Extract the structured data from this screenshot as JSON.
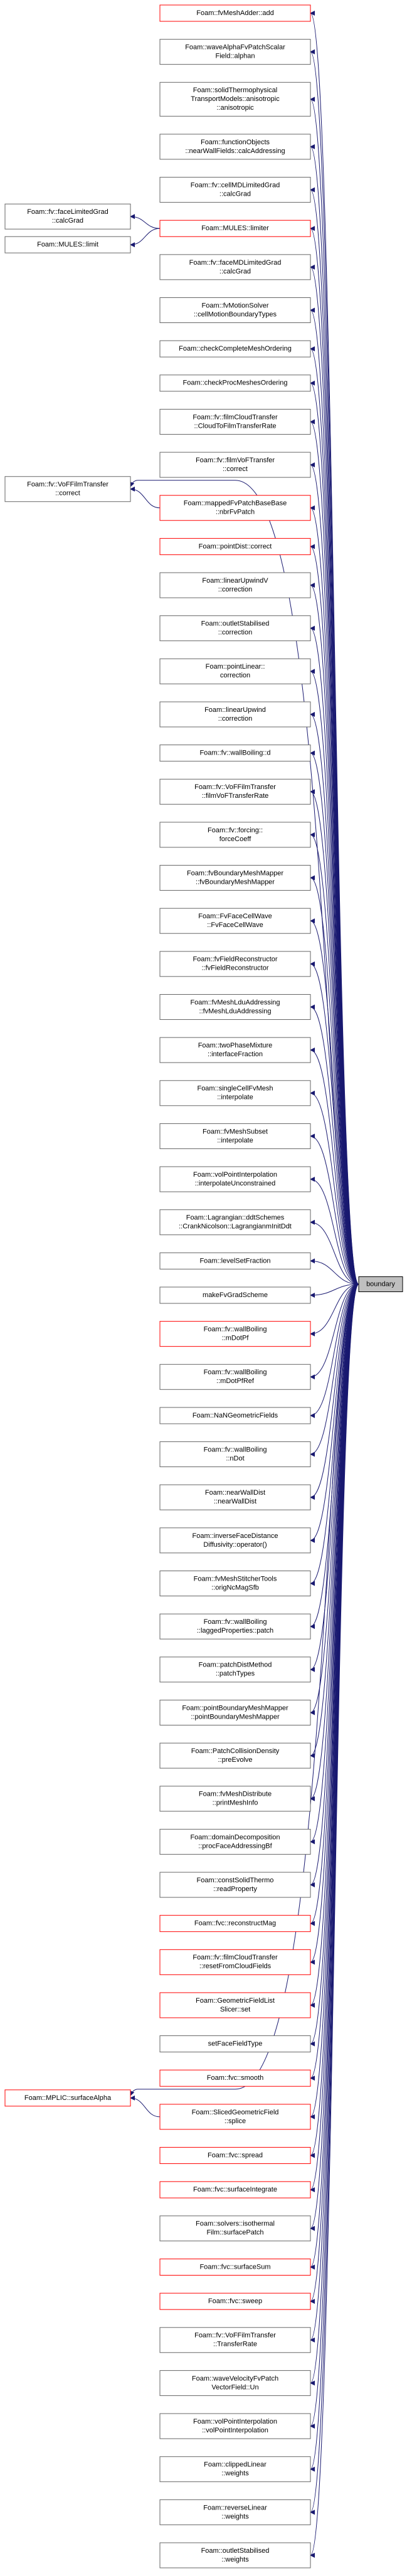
{
  "boundary": "boundary",
  "nodes": [
    {
      "lines": [
        "Foam::fvMeshAdder::add"
      ],
      "border": "#ff0000"
    },
    {
      "lines": [
        "Foam::waveAlphaFvPatchScalar",
        "Field::alphan"
      ],
      "border": "#666666"
    },
    {
      "lines": [
        "Foam::solidThermophysical",
        "TransportModels::anisotropic",
        "::anisotropic"
      ],
      "border": "#666666"
    },
    {
      "lines": [
        "Foam::functionObjects",
        "::nearWallFields::calcAddressing"
      ],
      "border": "#666666"
    },
    {
      "lines": [
        "Foam::fv::cellMDLimitedGrad",
        "::calcGrad"
      ],
      "border": "#666666"
    },
    {
      "lines": [
        "Foam::MULES::limiter"
      ],
      "border": "#ff0000"
    },
    {
      "lines": [
        "Foam::fv::faceMDLimitedGrad",
        "::calcGrad"
      ],
      "border": "#666666"
    },
    {
      "lines": [
        "Foam::fvMotionSolver",
        "::cellMotionBoundaryTypes"
      ],
      "border": "#666666"
    },
    {
      "lines": [
        "Foam::checkCompleteMeshOrdering"
      ],
      "border": "#666666"
    },
    {
      "lines": [
        "Foam::checkProcMeshesOrdering"
      ],
      "border": "#666666"
    },
    {
      "lines": [
        "Foam::fv::filmCloudTransfer",
        "::CloudToFilmTransferRate"
      ],
      "border": "#666666"
    },
    {
      "lines": [
        "Foam::fv::filmVoFTransfer",
        "::correct"
      ],
      "border": "#666666"
    },
    {
      "lines": [
        "Foam::mappedFvPatchBaseBase",
        "::nbrFvPatch"
      ],
      "border": "#ff0000"
    },
    {
      "lines": [
        "Foam::pointDist::correct"
      ],
      "border": "#ff0000"
    },
    {
      "lines": [
        "Foam::linearUpwindV",
        "::correction"
      ],
      "border": "#666666"
    },
    {
      "lines": [
        "Foam::outletStabilised",
        "::correction"
      ],
      "border": "#666666"
    },
    {
      "lines": [
        "Foam::pointLinear::",
        "correction"
      ],
      "border": "#666666"
    },
    {
      "lines": [
        "Foam::linearUpwind",
        "::correction"
      ],
      "border": "#666666"
    },
    {
      "lines": [
        "Foam::fv::wallBoiling::d"
      ],
      "border": "#666666"
    },
    {
      "lines": [
        "Foam::fv::VoFFilmTransfer",
        "::filmVoFTransferRate"
      ],
      "border": "#666666"
    },
    {
      "lines": [
        "Foam::fv::forcing::",
        "forceCoeff"
      ],
      "border": "#666666"
    },
    {
      "lines": [
        "Foam::fvBoundaryMeshMapper",
        "::fvBoundaryMeshMapper"
      ],
      "border": "#666666"
    },
    {
      "lines": [
        "Foam::FvFaceCellWave",
        "::FvFaceCellWave"
      ],
      "border": "#666666"
    },
    {
      "lines": [
        "Foam::fvFieldReconstructor",
        "::fvFieldReconstructor"
      ],
      "border": "#666666"
    },
    {
      "lines": [
        "Foam::fvMeshLduAddressing",
        "::fvMeshLduAddressing"
      ],
      "border": "#666666"
    },
    {
      "lines": [
        "Foam::twoPhaseMixture",
        "::interfaceFraction"
      ],
      "border": "#666666"
    },
    {
      "lines": [
        "Foam::singleCellFvMesh",
        "::interpolate"
      ],
      "border": "#666666"
    },
    {
      "lines": [
        "Foam::fvMeshSubset",
        "::interpolate"
      ],
      "border": "#666666"
    },
    {
      "lines": [
        "Foam::volPointInterpolation",
        "::interpolateUnconstrained"
      ],
      "border": "#666666"
    },
    {
      "lines": [
        "Foam::Lagrangian::ddtSchemes",
        "::CrankNicolson::LagrangianmInitDdt"
      ],
      "border": "#666666"
    },
    {
      "lines": [
        "Foam::levelSetFraction"
      ],
      "border": "#666666"
    },
    {
      "lines": [
        "makeFvGradScheme"
      ],
      "border": "#666666"
    },
    {
      "lines": [
        "Foam::fv::wallBoiling",
        "::mDotPf"
      ],
      "border": "#ff0000"
    },
    {
      "lines": [
        "Foam::fv::wallBoiling",
        "::mDotPfRef"
      ],
      "border": "#666666"
    },
    {
      "lines": [
        "Foam::NaNGeometricFields"
      ],
      "border": "#666666"
    },
    {
      "lines": [
        "Foam::fv::wallBoiling",
        "::nDot"
      ],
      "border": "#666666"
    },
    {
      "lines": [
        "Foam::nearWallDist",
        "::nearWallDist"
      ],
      "border": "#666666"
    },
    {
      "lines": [
        "Foam::inverseFaceDistance",
        "Diffusivity::operator()"
      ],
      "border": "#666666"
    },
    {
      "lines": [
        "Foam::fvMeshStitcherTools",
        "::origNcMagSfb"
      ],
      "border": "#666666"
    },
    {
      "lines": [
        "Foam::fv::wallBoiling",
        "::laggedProperties::patch"
      ],
      "border": "#666666"
    },
    {
      "lines": [
        "Foam::patchDistMethod",
        "::patchTypes"
      ],
      "border": "#666666"
    },
    {
      "lines": [
        "Foam::pointBoundaryMeshMapper",
        "::pointBoundaryMeshMapper"
      ],
      "border": "#666666"
    },
    {
      "lines": [
        "Foam::PatchCollisionDensity",
        "::preEvolve"
      ],
      "border": "#666666"
    },
    {
      "lines": [
        "Foam::fvMeshDistribute",
        "::printMeshInfo"
      ],
      "border": "#666666"
    },
    {
      "lines": [
        "Foam::domainDecomposition",
        "::procFaceAddressingBf"
      ],
      "border": "#666666"
    },
    {
      "lines": [
        "Foam::constSolidThermo",
        "::readProperty"
      ],
      "border": "#666666"
    },
    {
      "lines": [
        "Foam::fvc::reconstructMag"
      ],
      "border": "#ff0000"
    },
    {
      "lines": [
        "Foam::fv::filmCloudTransfer",
        "::resetFromCloudFields"
      ],
      "border": "#ff0000"
    },
    {
      "lines": [
        "Foam::GeometricFieldList",
        "Slicer::set"
      ],
      "border": "#ff0000"
    },
    {
      "lines": [
        "setFaceFieldType"
      ],
      "border": "#666666"
    },
    {
      "lines": [
        "Foam::fvc::smooth"
      ],
      "border": "#ff0000"
    },
    {
      "lines": [
        "Foam::SlicedGeometricField",
        "::splice"
      ],
      "border": "#ff0000"
    },
    {
      "lines": [
        "Foam::fvc::spread"
      ],
      "border": "#ff0000"
    },
    {
      "lines": [
        "Foam::fvc::surfaceIntegrate"
      ],
      "border": "#ff0000"
    },
    {
      "lines": [
        "Foam::solvers::isothermal",
        "Film::surfacePatch"
      ],
      "border": "#666666"
    },
    {
      "lines": [
        "Foam::fvc::surfaceSum"
      ],
      "border": "#ff0000"
    },
    {
      "lines": [
        "Foam::fvc::sweep"
      ],
      "border": "#ff0000"
    },
    {
      "lines": [
        "Foam::fv::VoFFilmTransfer",
        "::TransferRate"
      ],
      "border": "#666666"
    },
    {
      "lines": [
        "Foam::waveVelocityFvPatch",
        "VectorField::Un"
      ],
      "border": "#666666"
    },
    {
      "lines": [
        "Foam::volPointInterpolation",
        "::volPointInterpolation"
      ],
      "border": "#666666"
    },
    {
      "lines": [
        "Foam::clippedLinear",
        "::weights"
      ],
      "border": "#666666"
    },
    {
      "lines": [
        "Foam::reverseLinear",
        "::weights"
      ],
      "border": "#666666"
    },
    {
      "lines": [
        "Foam::outletStabilised",
        "::weights"
      ],
      "border": "#666666"
    }
  ],
  "left_nodes": [
    {
      "lines": [
        "Foam::fv::faceLimitedGrad",
        "::calcGrad"
      ],
      "border": "#666666",
      "callee": 5,
      "calls_boundary": false
    },
    {
      "lines": [
        "Foam::MULES::limit"
      ],
      "border": "#666666",
      "callee": 5,
      "calls_boundary": false
    },
    {
      "lines": [
        "Foam::fv::VoFFilmTransfer",
        "::correct"
      ],
      "border": "#666666",
      "callee": 12,
      "calls_boundary": true
    },
    {
      "lines": [
        "Foam::MPLIC::surfaceAlpha"
      ],
      "border": "#ff0000",
      "callee": 51,
      "calls_boundary": true
    }
  ]
}
